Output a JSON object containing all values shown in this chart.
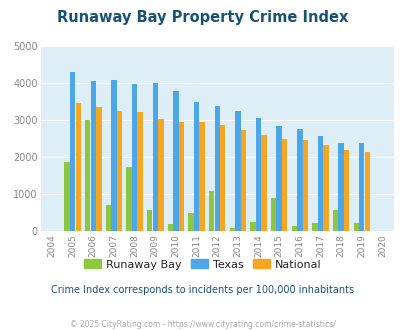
{
  "title": "Runaway Bay Property Crime Index",
  "years": [
    2004,
    2005,
    2006,
    2007,
    2008,
    2009,
    2010,
    2011,
    2012,
    2013,
    2014,
    2015,
    2016,
    2017,
    2018,
    2019,
    2020
  ],
  "runaway_bay": [
    0,
    1870,
    3000,
    700,
    1720,
    580,
    200,
    480,
    1080,
    80,
    250,
    900,
    130,
    220,
    560,
    220,
    0
  ],
  "texas": [
    0,
    4300,
    4070,
    4080,
    3980,
    4010,
    3800,
    3500,
    3380,
    3260,
    3050,
    2840,
    2770,
    2570,
    2390,
    2380,
    0
  ],
  "national": [
    0,
    3460,
    3350,
    3240,
    3210,
    3040,
    2960,
    2950,
    2880,
    2730,
    2600,
    2490,
    2460,
    2340,
    2200,
    2130,
    0
  ],
  "bar_colors": {
    "runaway_bay": "#8dc63f",
    "texas": "#4da6e8",
    "national": "#f5a623"
  },
  "bg_color": "#ddeef6",
  "ylim": [
    0,
    5000
  ],
  "yticks": [
    0,
    1000,
    2000,
    3000,
    4000,
    5000
  ],
  "subtitle": "Crime Index corresponds to incidents per 100,000 inhabitants",
  "footer": "© 2025 CityRating.com - https://www.cityrating.com/crime-statistics/",
  "title_color": "#1a5276",
  "subtitle_color": "#1a5276",
  "footer_color": "#aaaaaa",
  "footer_url_color": "#4da6e8",
  "tick_color": "#888888",
  "grid_color": "#ffffff"
}
